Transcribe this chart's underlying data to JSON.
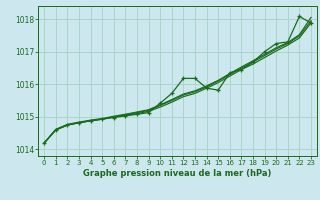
{
  "background_color": "#cce8ee",
  "grid_color": "#aad4cc",
  "line_color": "#1a6b1a",
  "title": "Graphe pression niveau de la mer (hPa)",
  "ylim": [
    1013.8,
    1018.4
  ],
  "yticks": [
    1014,
    1015,
    1016,
    1017,
    1018
  ],
  "xlim": [
    -0.5,
    23.5
  ],
  "xticks": [
    0,
    1,
    2,
    3,
    4,
    5,
    6,
    7,
    8,
    9,
    10,
    11,
    12,
    13,
    14,
    15,
    16,
    17,
    18,
    19,
    20,
    21,
    22,
    23
  ],
  "hours": [
    0,
    1,
    2,
    3,
    4,
    5,
    6,
    7,
    8,
    9,
    10,
    11,
    12,
    13,
    14,
    15,
    16,
    17,
    18,
    19,
    20,
    21,
    22,
    23
  ],
  "line_smooth1": [
    1014.2,
    1014.6,
    1014.75,
    1014.82,
    1014.88,
    1014.93,
    1015.0,
    1015.05,
    1015.1,
    1015.17,
    1015.3,
    1015.45,
    1015.62,
    1015.72,
    1015.88,
    1016.05,
    1016.25,
    1016.45,
    1016.62,
    1016.82,
    1017.02,
    1017.2,
    1017.42,
    1017.88
  ],
  "line_smooth2": [
    1014.2,
    1014.6,
    1014.75,
    1014.82,
    1014.88,
    1014.93,
    1015.0,
    1015.07,
    1015.13,
    1015.2,
    1015.35,
    1015.5,
    1015.67,
    1015.77,
    1015.92,
    1016.1,
    1016.3,
    1016.5,
    1016.68,
    1016.88,
    1017.08,
    1017.25,
    1017.48,
    1017.95
  ],
  "line_smooth3": [
    1014.2,
    1014.62,
    1014.77,
    1014.84,
    1014.9,
    1014.95,
    1015.02,
    1015.08,
    1015.15,
    1015.22,
    1015.37,
    1015.53,
    1015.7,
    1015.8,
    1015.95,
    1016.12,
    1016.33,
    1016.53,
    1016.72,
    1016.92,
    1017.12,
    1017.28,
    1017.52,
    1018.05
  ],
  "line_marker": [
    1014.2,
    1014.6,
    1014.75,
    1014.82,
    1014.88,
    1014.93,
    1014.98,
    1015.03,
    1015.08,
    1015.13,
    1015.42,
    1015.72,
    1016.18,
    1016.18,
    1015.88,
    1015.82,
    1016.35,
    1016.45,
    1016.68,
    1017.0,
    1017.25,
    1017.3,
    1018.08,
    1017.88
  ]
}
